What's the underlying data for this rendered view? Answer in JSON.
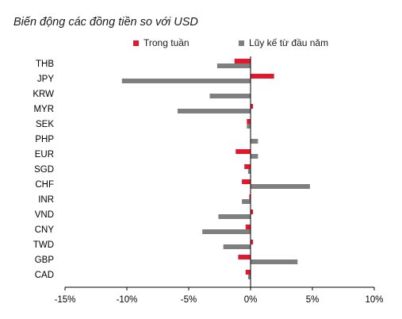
{
  "chart_data": {
    "type": "bar",
    "orientation": "horizontal",
    "title": "Biến động các đồng tiền so với USD",
    "categories": [
      "THB",
      "JPY",
      "KRW",
      "MYR",
      "SEK",
      "PHP",
      "EUR",
      "SGD",
      "CHF",
      "INR",
      "VND",
      "CNY",
      "TWD",
      "GBP",
      "CAD"
    ],
    "series": [
      {
        "name": "Trong tuần",
        "color": "#e2182e",
        "values": [
          -1.3,
          1.9,
          0.0,
          0.2,
          -0.3,
          0.0,
          -1.2,
          -0.5,
          -0.7,
          -0.1,
          0.2,
          -0.4,
          0.2,
          -1.0,
          -0.4
        ]
      },
      {
        "name": "Lũy kế từ đầu năm",
        "color": "#7f7f7f",
        "values": [
          -2.7,
          -10.4,
          -3.3,
          -5.9,
          -0.3,
          0.6,
          0.6,
          -0.2,
          4.8,
          -0.7,
          -2.6,
          -3.9,
          -2.2,
          3.8,
          -0.2
        ]
      }
    ],
    "xlim": [
      -15,
      10
    ],
    "x_ticks": [
      "-15%",
      "-10%",
      "-5%",
      "0%",
      "5%",
      "10%"
    ],
    "legend_position": "top",
    "grid": false
  }
}
